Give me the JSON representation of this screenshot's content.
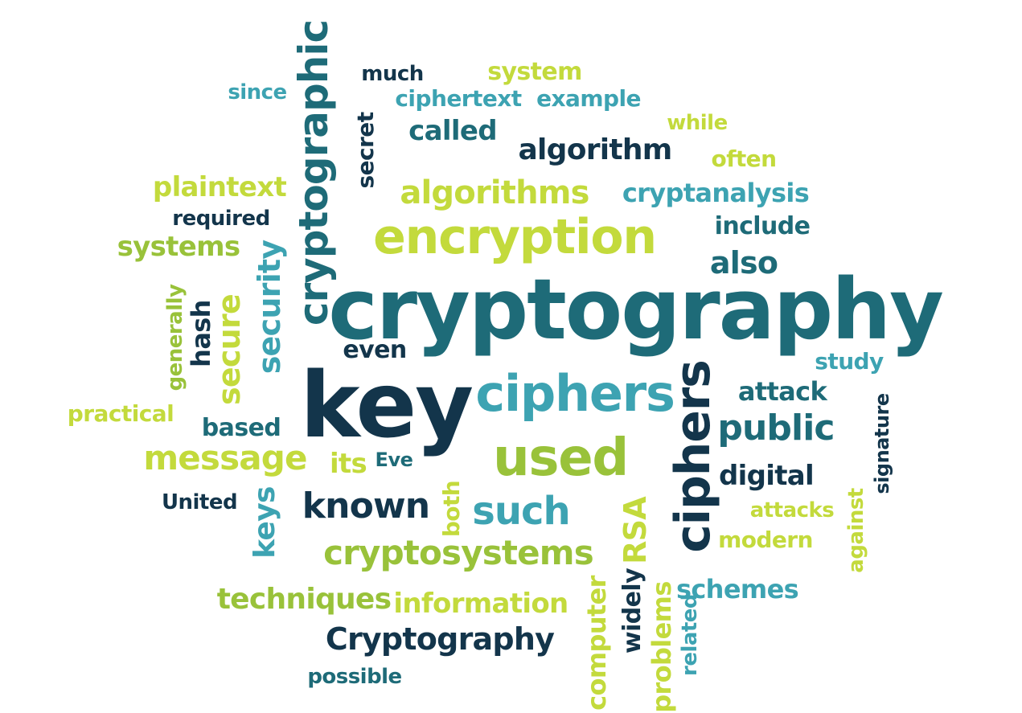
{
  "palette": {
    "navy": "#13354b",
    "teal": "#1e6b78",
    "cyan": "#3da3b2",
    "lime": "#c3da3c",
    "green": "#99c23a"
  },
  "words": {
    "cryptography_big": "cryptography",
    "key": "key",
    "cryptographic": "cryptographic",
    "encryption": "encryption",
    "ciphers_h": "ciphers",
    "ciphers_v": "ciphers",
    "used": "used",
    "algorithms": "algorithms",
    "algorithm": "algorithm",
    "cryptanalysis": "cryptanalysis",
    "cryptosystems": "cryptosystems",
    "message": "message",
    "known": "known",
    "such": "such",
    "public": "public",
    "security": "security",
    "secure": "secure",
    "systems": "systems",
    "plaintext": "plaintext",
    "required": "required",
    "ciphertext": "ciphertext",
    "example": "example",
    "called": "called",
    "system": "system",
    "much": "much",
    "since": "since",
    "secret": "secret",
    "while": "while",
    "often": "often",
    "include": "include",
    "also": "also",
    "study": "study",
    "attack": "attack",
    "digital": "digital",
    "attacks": "attacks",
    "modern": "modern",
    "against": "against",
    "signature": "signature",
    "schemes": "schemes",
    "RSA": "RSA",
    "both": "both",
    "computer": "computer",
    "widely": "widely",
    "problems": "problems",
    "related": "related",
    "information": "information",
    "techniques": "techniques",
    "Cryptography": "Cryptography",
    "possible": "possible",
    "keys": "keys",
    "United": "United",
    "its": "its",
    "Eve": "Eve",
    "based": "based",
    "practical": "practical",
    "generally": "generally",
    "hash": "hash",
    "even": "even"
  }
}
